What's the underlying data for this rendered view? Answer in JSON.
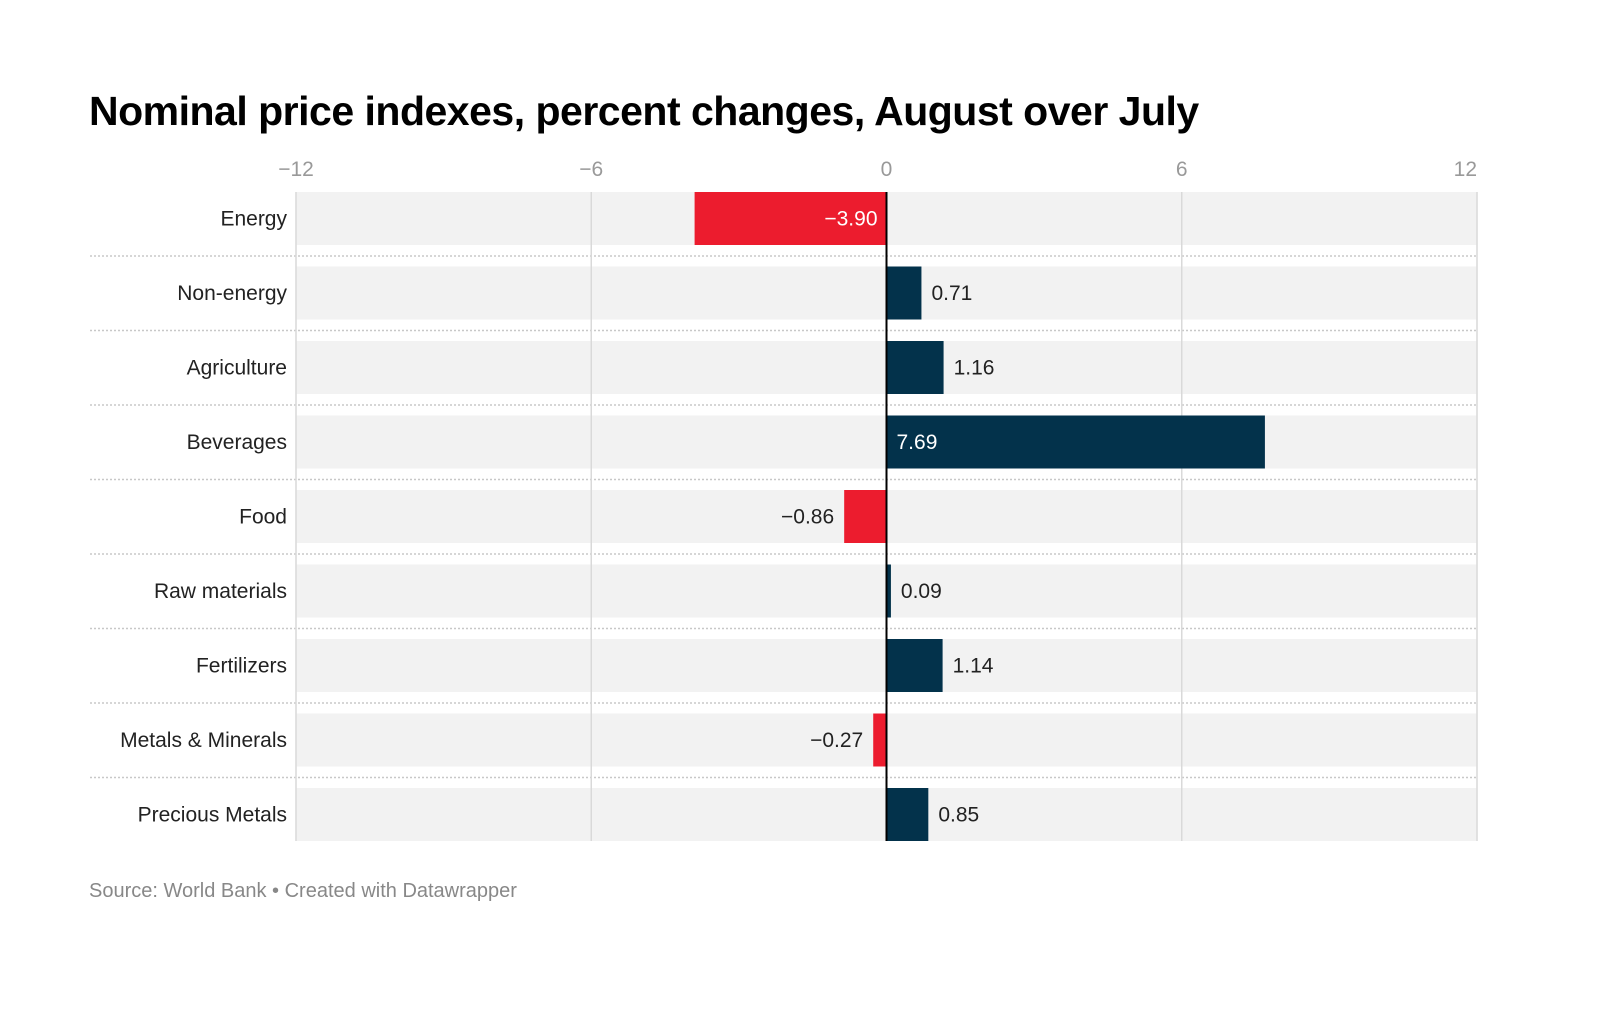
{
  "title": "Nominal price indexes, percent changes, August over July",
  "footer": "Source: World Bank • Created with Datawrapper",
  "colors": {
    "positive": "#03324b",
    "negative": "#ec1c2e",
    "row_bg": "#f2f2f2",
    "grid": "#d9d9d9"
  },
  "chart_data": {
    "type": "bar",
    "orientation": "horizontal",
    "title": "Nominal price indexes, percent changes, August over July",
    "xlabel": "",
    "ylabel": "",
    "xlim": [
      -12,
      12
    ],
    "xticks": [
      -12,
      -6,
      0,
      6,
      12
    ],
    "xtick_labels": [
      "−12",
      "−6",
      "0",
      "6",
      "12"
    ],
    "grid": true,
    "categories": [
      "Energy",
      "Non-energy",
      "Agriculture",
      "Beverages",
      "Food",
      "Raw materials",
      "Fertilizers",
      "Metals & Minerals",
      "Precious Metals"
    ],
    "values": [
      -3.9,
      0.71,
      1.16,
      7.69,
      -0.86,
      0.09,
      1.14,
      -0.27,
      0.85
    ],
    "value_labels": [
      "−3.90",
      "0.71",
      "1.16",
      "7.69",
      "−0.86",
      "0.09",
      "1.14",
      "−0.27",
      "0.85"
    ],
    "source": "World Bank"
  }
}
